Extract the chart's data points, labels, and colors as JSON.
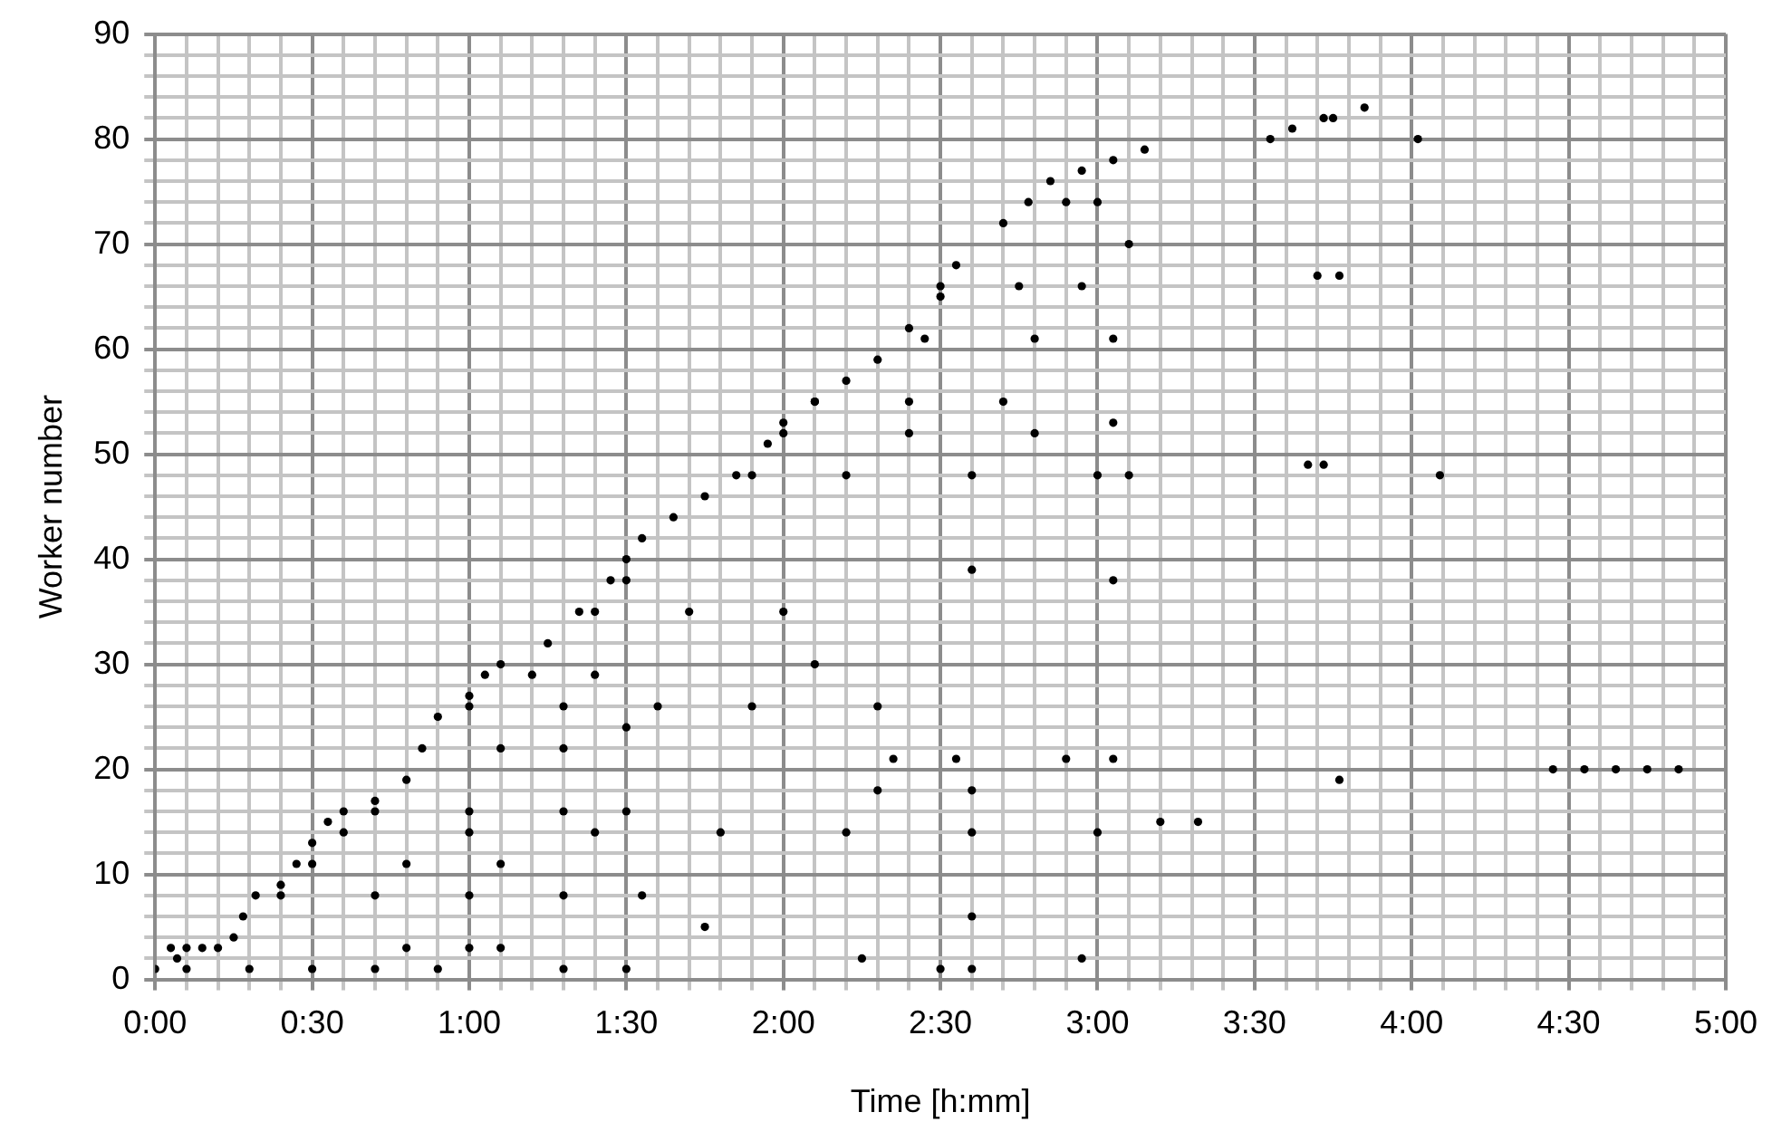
{
  "chart_data": {
    "type": "scatter",
    "xlabel": "Time [h:mm]",
    "ylabel": "Worker number",
    "marker": "circle",
    "grid": true,
    "legend": false,
    "xlim": [
      0,
      5
    ],
    "ylim": [
      0,
      90
    ],
    "xticks": [
      {
        "value": 0,
        "label": "0:00"
      },
      {
        "value": 0.1,
        "label": null
      },
      {
        "value": 0.2,
        "label": null
      },
      {
        "value": 0.3,
        "label": null
      },
      {
        "value": 0.4,
        "label": null
      },
      {
        "value": 0.5,
        "label": "0:30"
      },
      {
        "value": 0.6,
        "label": null
      },
      {
        "value": 0.7,
        "label": null
      },
      {
        "value": 0.8,
        "label": null
      },
      {
        "value": 0.9,
        "label": null
      },
      {
        "value": 1,
        "label": "1:00"
      },
      {
        "value": 1.1,
        "label": null
      },
      {
        "value": 1.2,
        "label": null
      },
      {
        "value": 1.3,
        "label": null
      },
      {
        "value": 1.4,
        "label": null
      },
      {
        "value": 1.5,
        "label": "1:30"
      },
      {
        "value": 1.6,
        "label": null
      },
      {
        "value": 1.7,
        "label": null
      },
      {
        "value": 1.8,
        "label": null
      },
      {
        "value": 1.9,
        "label": null
      },
      {
        "value": 2,
        "label": "2:00"
      },
      {
        "value": 2.1,
        "label": null
      },
      {
        "value": 2.2,
        "label": null
      },
      {
        "value": 2.3,
        "label": null
      },
      {
        "value": 2.4,
        "label": null
      },
      {
        "value": 2.5,
        "label": "2:30"
      },
      {
        "value": 2.6,
        "label": null
      },
      {
        "value": 2.7,
        "label": null
      },
      {
        "value": 2.8,
        "label": null
      },
      {
        "value": 2.9,
        "label": null
      },
      {
        "value": 3,
        "label": "3:00"
      },
      {
        "value": 3.1,
        "label": null
      },
      {
        "value": 3.2,
        "label": null
      },
      {
        "value": 3.3,
        "label": null
      },
      {
        "value": 3.4,
        "label": null
      },
      {
        "value": 3.5,
        "label": "3:30"
      },
      {
        "value": 3.6,
        "label": null
      },
      {
        "value": 3.7,
        "label": null
      },
      {
        "value": 3.8,
        "label": null
      },
      {
        "value": 3.9,
        "label": null
      },
      {
        "value": 4,
        "label": "4:00"
      },
      {
        "value": 4.1,
        "label": null
      },
      {
        "value": 4.2,
        "label": null
      },
      {
        "value": 4.3,
        "label": null
      },
      {
        "value": 4.4,
        "label": null
      },
      {
        "value": 4.5,
        "label": "4:30"
      },
      {
        "value": 4.6,
        "label": null
      },
      {
        "value": 4.7,
        "label": null
      },
      {
        "value": 4.8,
        "label": null
      },
      {
        "value": 4.9,
        "label": null
      },
      {
        "value": 5,
        "label": "5:00"
      }
    ],
    "yticks": [
      0,
      {
        "value": 2,
        "label": null
      },
      {
        "value": 4,
        "label": null
      },
      {
        "value": 6,
        "label": null
      },
      {
        "value": 8,
        "label": null
      },
      10,
      {
        "value": 12,
        "label": null
      },
      {
        "value": 14,
        "label": null
      },
      {
        "value": 16,
        "label": null
      },
      {
        "value": 18,
        "label": null
      },
      20,
      {
        "value": 22,
        "label": null
      },
      {
        "value": 24,
        "label": null
      },
      {
        "value": 26,
        "label": null
      },
      {
        "value": 28,
        "label": null
      },
      30,
      {
        "value": 32,
        "label": null
      },
      {
        "value": 34,
        "label": null
      },
      {
        "value": 36,
        "label": null
      },
      {
        "value": 38,
        "label": null
      },
      40,
      {
        "value": 42,
        "label": null
      },
      {
        "value": 44,
        "label": null
      },
      {
        "value": 46,
        "label": null
      },
      {
        "value": 48,
        "label": null
      },
      50,
      {
        "value": 52,
        "label": null
      },
      {
        "value": 54,
        "label": null
      },
      {
        "value": 56,
        "label": null
      },
      {
        "value": 58,
        "label": null
      },
      60,
      {
        "value": 62,
        "label": null
      },
      {
        "value": 64,
        "label": null
      },
      {
        "value": 66,
        "label": null
      },
      {
        "value": 68,
        "label": null
      },
      70,
      {
        "value": 72,
        "label": null
      },
      {
        "value": 74,
        "label": null
      },
      {
        "value": 76,
        "label": null
      },
      {
        "value": 78,
        "label": null
      },
      80,
      {
        "value": 82,
        "label": null
      },
      {
        "value": 84,
        "label": null
      },
      {
        "value": 86,
        "label": null
      },
      {
        "value": 88,
        "label": null
      },
      90
    ],
    "series": [
      {
        "color": "#000000",
        "x": [
          0,
          0.07,
          0.1,
          0.2,
          0.25,
          0.28,
          0.32,
          0.4,
          0.45,
          0.5,
          0.55,
          0.6,
          0.7,
          0.8,
          0.85,
          0.9,
          1,
          1.05,
          1.1,
          1.25,
          1.35,
          1.45,
          1.5,
          1.55,
          1.65,
          1.75,
          1.85,
          1.95,
          2,
          2.1,
          2.2,
          2.3,
          2.4,
          2.5,
          2.55,
          2.7,
          2.78,
          2.85,
          2.95,
          3.05,
          3.15,
          3.55,
          3.62,
          3.72,
          3.75,
          3.85,
          4.02,
          3.7,
          3.77,
          3.67,
          3.72,
          4.09,
          3.77,
          4.45,
          4.55,
          4.65,
          4.75,
          4.85,
          3.2,
          3.32,
          0.1,
          0.3,
          0.5,
          0.7,
          0.9,
          1.3,
          1.5,
          2.5,
          2.6,
          0.05,
          0.15,
          0.8,
          1,
          1.1,
          0.4,
          0.7,
          1,
          1.3,
          1.55,
          0.5,
          0.8,
          1.1,
          0.6,
          1,
          1.4,
          1.8,
          2.2,
          2.6,
          3,
          0.7,
          1,
          1.3,
          1.5,
          2.3,
          2.6,
          2.35,
          2.55,
          2.9,
          3.05,
          1.1,
          1.3,
          1,
          1.3,
          1.6,
          1.9,
          2.3,
          1.2,
          1.4,
          2.1,
          1.4,
          1.7,
          2,
          1.5,
          1.9,
          2.2,
          2.6,
          3,
          3.1,
          2,
          2.4,
          2.8,
          2.1,
          2.4,
          2.7,
          2.45,
          2.8,
          3.05,
          2.5,
          2.75,
          2.95,
          3.1,
          2.9,
          3,
          2.6,
          3.05,
          2.25,
          2.95,
          1.75,
          2.6,
          3.05,
          1.5
        ],
        "values": [
          1,
          2,
          3,
          3,
          4,
          6,
          8,
          9,
          11,
          13,
          15,
          16,
          17,
          19,
          22,
          25,
          27,
          29,
          30,
          32,
          35,
          38,
          40,
          42,
          44,
          46,
          48,
          51,
          53,
          55,
          57,
          59,
          62,
          65,
          68,
          72,
          74,
          76,
          77,
          78,
          79,
          80,
          81,
          82,
          82,
          83,
          80,
          67,
          67,
          49,
          49,
          48,
          19,
          20,
          20,
          20,
          20,
          20,
          15,
          15,
          1,
          1,
          1,
          1,
          1,
          1,
          1,
          1,
          1,
          3,
          3,
          3,
          3,
          3,
          8,
          8,
          8,
          8,
          8,
          11,
          11,
          11,
          14,
          14,
          14,
          14,
          14,
          14,
          14,
          16,
          16,
          16,
          16,
          18,
          18,
          21,
          21,
          21,
          21,
          22,
          22,
          26,
          26,
          26,
          26,
          26,
          29,
          29,
          30,
          35,
          35,
          35,
          38,
          48,
          48,
          48,
          48,
          48,
          52,
          52,
          52,
          55,
          55,
          55,
          61,
          61,
          61,
          66,
          66,
          66,
          70,
          74,
          74,
          39,
          38,
          2,
          2,
          5,
          6,
          53,
          24
        ]
      }
    ]
  }
}
